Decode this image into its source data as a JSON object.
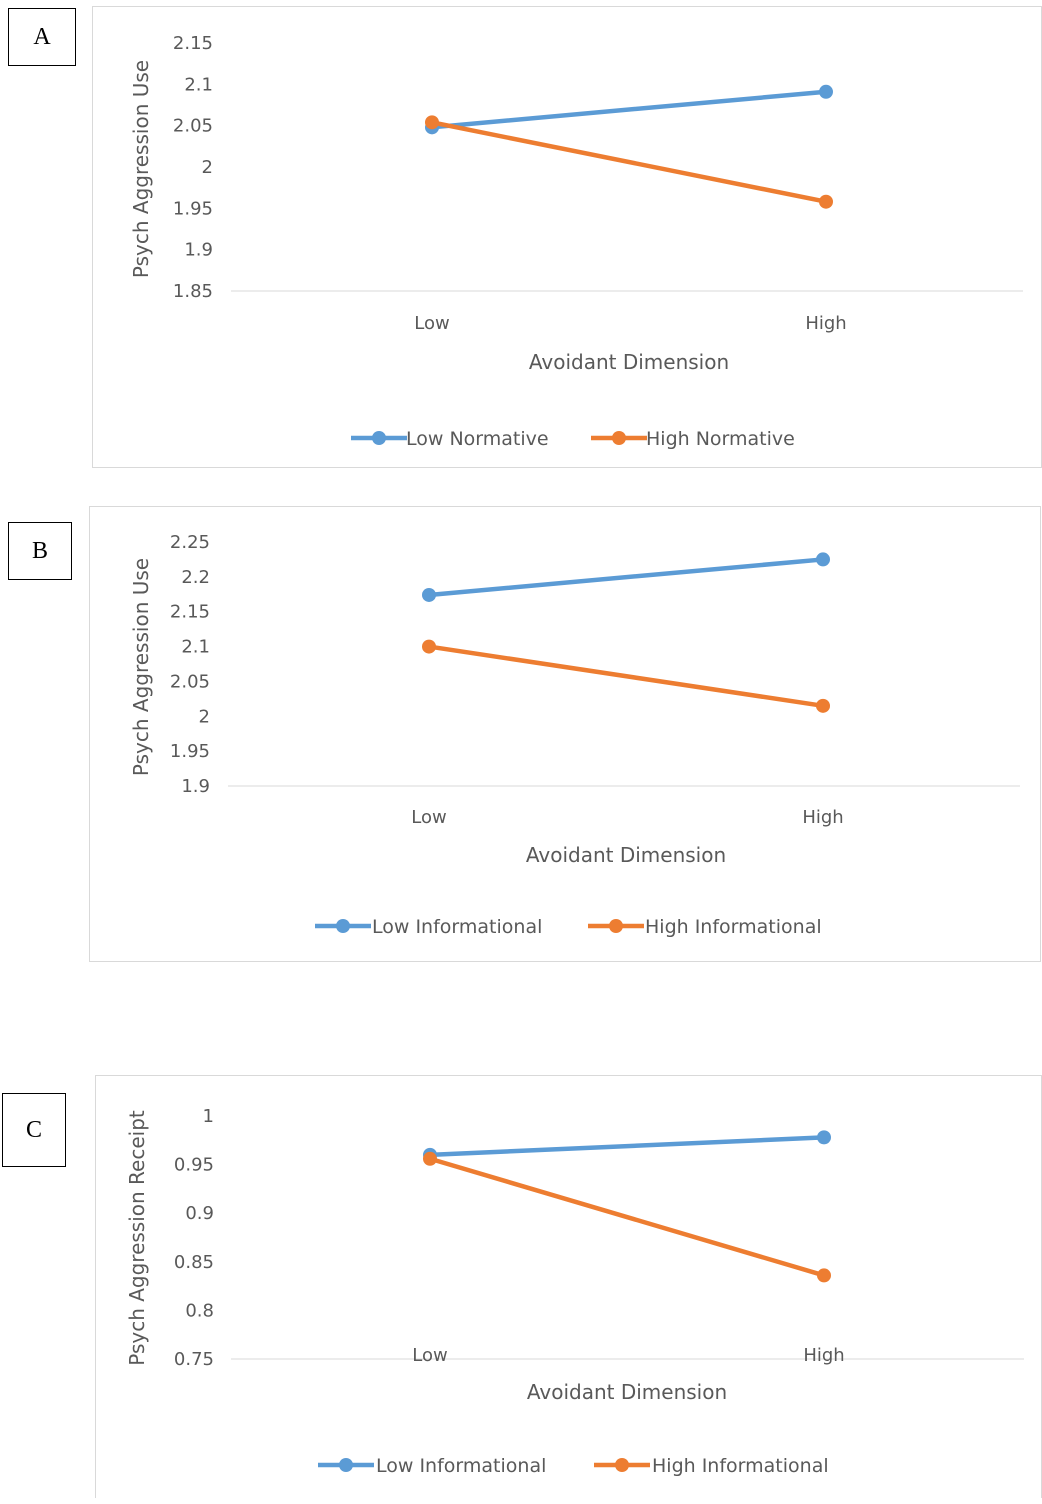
{
  "panel_labels": [
    "A",
    "B",
    "C"
  ],
  "chart_data": [
    {
      "type": "line",
      "categories": [
        "Low",
        "High"
      ],
      "series": [
        {
          "name": "Low Normative",
          "values": [
            2.048,
            2.091
          ],
          "color": "#5b9bd5"
        },
        {
          "name": "High Normative",
          "values": [
            2.054,
            1.958
          ],
          "color": "#ed7d31"
        }
      ],
      "xlabel": "Avoidant Dimension",
      "ylabel": "Psych Aggression Use",
      "ylim": [
        1.85,
        2.15
      ],
      "yticks": [
        "1.85",
        "1.9",
        "1.95",
        "2",
        "2.05",
        "2.1",
        "2.15"
      ],
      "grid": false,
      "legend": "bottom"
    },
    {
      "type": "line",
      "categories": [
        "Low",
        "High"
      ],
      "series": [
        {
          "name": "Low Informational",
          "values": [
            2.174,
            2.225
          ],
          "color": "#5b9bd5"
        },
        {
          "name": "High Informational",
          "values": [
            2.1,
            2.015
          ],
          "color": "#ed7d31"
        }
      ],
      "xlabel": "Avoidant Dimension",
      "ylabel": "Psych Aggression Use",
      "ylim": [
        1.9,
        2.25
      ],
      "yticks": [
        "1.9",
        "1.95",
        "2",
        "2.05",
        "2.1",
        "2.15",
        "2.2",
        "2.25"
      ],
      "grid": false,
      "legend": "bottom"
    },
    {
      "type": "line",
      "categories": [
        "Low",
        "High"
      ],
      "series": [
        {
          "name": "Low Informational",
          "values": [
            0.96,
            0.978
          ],
          "color": "#5b9bd5"
        },
        {
          "name": "High Informational",
          "values": [
            0.956,
            0.836
          ],
          "color": "#ed7d31"
        }
      ],
      "xlabel": "Avoidant Dimension",
      "ylabel": "Psych Aggression Receipt",
      "ylim": [
        0.75,
        1.0
      ],
      "yticks": [
        "0.75",
        "0.8",
        "0.85",
        "0.9",
        "0.95",
        "1"
      ],
      "grid": false,
      "legend": "bottom"
    }
  ]
}
